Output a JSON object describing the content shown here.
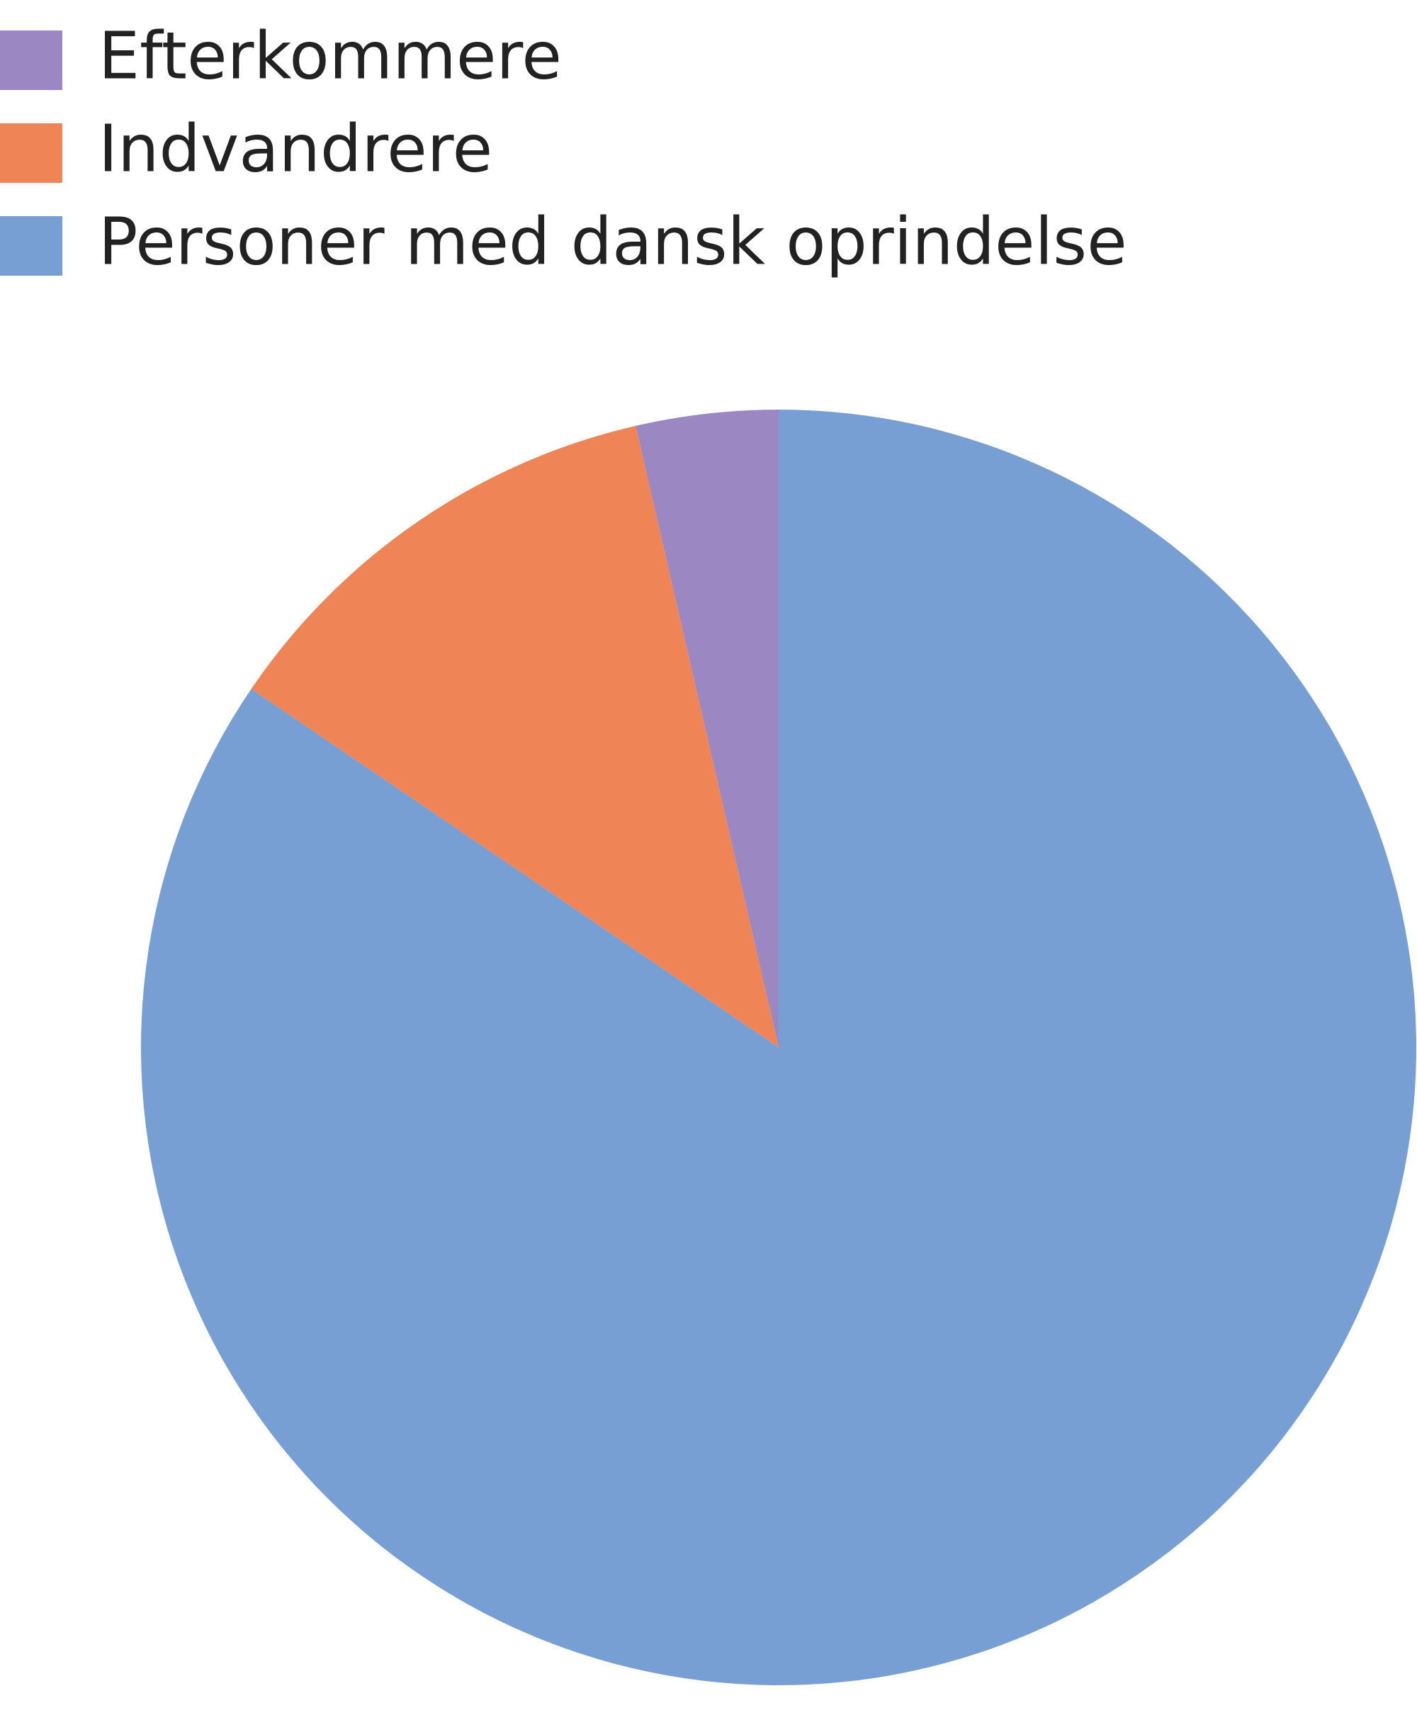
{
  "chart_data": {
    "type": "pie",
    "categories": [
      "Efterkommere",
      "Indvandrere",
      "Personer med dansk oprindelse"
    ],
    "values": [
      3.6,
      11.9,
      84.5
    ],
    "colors": [
      "#9b88c2",
      "#ef8456",
      "#789fd4"
    ],
    "direction": "counterclockwise",
    "legend": "top-left"
  }
}
